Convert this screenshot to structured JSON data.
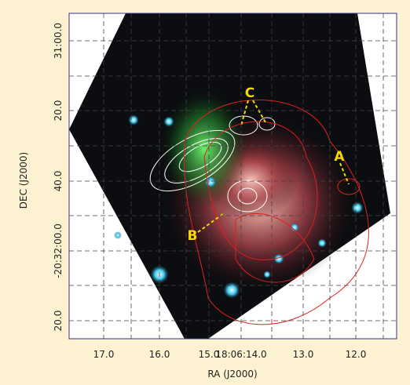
{
  "figure": {
    "x_axis": {
      "label": "RA (J2000)",
      "ticks": [
        "17.0",
        "16.0",
        "15.0",
        "18:06:14.0",
        "13.0",
        "12.0"
      ]
    },
    "y_axis": {
      "label": "DEC (J2000)",
      "ticks": [
        "31:00.0",
        "20.0",
        "40.0",
        "-20:32:00.0",
        "20.0"
      ]
    },
    "annotations": {
      "a": "A",
      "b": "B",
      "c": "C"
    }
  }
}
